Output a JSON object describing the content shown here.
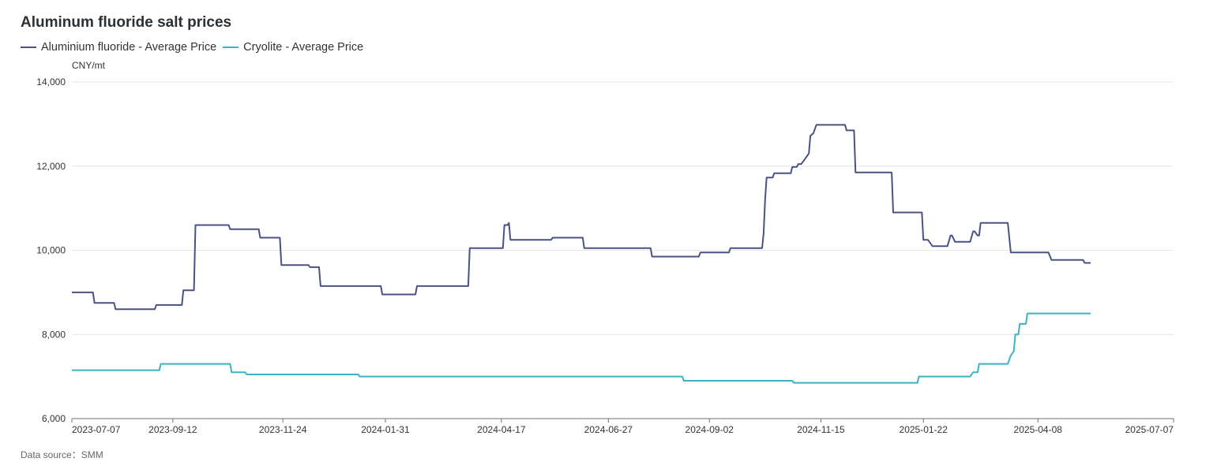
{
  "chart_data": {
    "type": "line",
    "title": "Aluminum fluoride salt prices",
    "ylabel": "CNY/mt",
    "ylim": [
      6000,
      14000
    ],
    "yticks": [
      "6,000",
      "8,000",
      "10,000",
      "12,000",
      "14,000"
    ],
    "xticks": [
      "2023-07-07",
      "2023-09-12",
      "2023-11-24",
      "2024-01-31",
      "2024-04-17",
      "2024-06-27",
      "2024-09-02",
      "2024-11-15",
      "2025-01-22",
      "2025-04-08",
      "2025-07-07"
    ],
    "grid": true,
    "legend_position": "top-left",
    "series": [
      {
        "name": "Aluminium fluoride - Average Price",
        "color": "#4a5185",
        "points": [
          [
            "2023-07-07",
            9000
          ],
          [
            "2023-07-21",
            9000
          ],
          [
            "2023-07-22",
            8750
          ],
          [
            "2023-08-04",
            8750
          ],
          [
            "2023-08-05",
            8600
          ],
          [
            "2023-08-31",
            8600
          ],
          [
            "2023-09-01",
            8700
          ],
          [
            "2023-09-18",
            8700
          ],
          [
            "2023-09-19",
            9050
          ],
          [
            "2023-09-26",
            9050
          ],
          [
            "2023-09-27",
            10600
          ],
          [
            "2023-10-19",
            10600
          ],
          [
            "2023-10-20",
            10500
          ],
          [
            "2023-11-08",
            10500
          ],
          [
            "2023-11-09",
            10300
          ],
          [
            "2023-11-22",
            10300
          ],
          [
            "2023-11-23",
            9650
          ],
          [
            "2023-12-11",
            9650
          ],
          [
            "2023-12-12",
            9600
          ],
          [
            "2023-12-18",
            9600
          ],
          [
            "2023-12-19",
            9150
          ],
          [
            "2024-01-28",
            9150
          ],
          [
            "2024-01-29",
            8950
          ],
          [
            "2024-02-20",
            8950
          ],
          [
            "2024-02-21",
            9150
          ],
          [
            "2024-03-26",
            9150
          ],
          [
            "2024-03-27",
            10050
          ],
          [
            "2024-04-18",
            10050
          ],
          [
            "2024-04-19",
            10600
          ],
          [
            "2024-04-21",
            10600
          ],
          [
            "2024-04-22",
            10650
          ],
          [
            "2024-04-23",
            10250
          ],
          [
            "2024-05-20",
            10250
          ],
          [
            "2024-05-21",
            10300
          ],
          [
            "2024-06-10",
            10300
          ],
          [
            "2024-06-11",
            10050
          ],
          [
            "2024-07-25",
            10050
          ],
          [
            "2024-07-26",
            9850
          ],
          [
            "2024-08-26",
            9850
          ],
          [
            "2024-08-27",
            9950
          ],
          [
            "2024-09-15",
            9950
          ],
          [
            "2024-09-16",
            10050
          ],
          [
            "2024-10-07",
            10050
          ],
          [
            "2024-10-08",
            10400
          ],
          [
            "2024-10-09",
            11200
          ],
          [
            "2024-10-10",
            11730
          ],
          [
            "2024-10-14",
            11730
          ],
          [
            "2024-10-15",
            11830
          ],
          [
            "2024-10-26",
            11830
          ],
          [
            "2024-10-27",
            11980
          ],
          [
            "2024-10-30",
            11980
          ],
          [
            "2024-10-31",
            12050
          ],
          [
            "2024-11-02",
            12050
          ],
          [
            "2024-11-05",
            12200
          ],
          [
            "2024-11-07",
            12300
          ],
          [
            "2024-11-08",
            12720
          ],
          [
            "2024-11-09",
            12750
          ],
          [
            "2024-11-10",
            12780
          ],
          [
            "2024-11-12",
            12980
          ],
          [
            "2024-12-01",
            12980
          ],
          [
            "2024-12-02",
            12850
          ],
          [
            "2024-12-07",
            12850
          ],
          [
            "2024-12-08",
            11850
          ],
          [
            "2025-01-01",
            11850
          ],
          [
            "2025-01-02",
            10900
          ],
          [
            "2025-01-21",
            10900
          ],
          [
            "2025-01-22",
            10250
          ],
          [
            "2025-01-25",
            10250
          ],
          [
            "2025-01-28",
            10100
          ],
          [
            "2025-02-07",
            10100
          ],
          [
            "2025-02-09",
            10350
          ],
          [
            "2025-02-10",
            10350
          ],
          [
            "2025-02-12",
            10200
          ],
          [
            "2025-02-22",
            10200
          ],
          [
            "2025-02-24",
            10450
          ],
          [
            "2025-02-25",
            10450
          ],
          [
            "2025-02-27",
            10350
          ],
          [
            "2025-02-28",
            10350
          ],
          [
            "2025-03-01",
            10650
          ],
          [
            "2025-03-19",
            10650
          ],
          [
            "2025-03-21",
            9950
          ],
          [
            "2025-04-15",
            9950
          ],
          [
            "2025-04-17",
            9770
          ],
          [
            "2025-05-08",
            9770
          ],
          [
            "2025-05-09",
            9700
          ],
          [
            "2025-05-13",
            9700
          ]
        ]
      },
      {
        "name": "Cryolite - Average Price",
        "color": "#3ab3c4",
        "points": [
          [
            "2023-07-07",
            7150
          ],
          [
            "2023-09-03",
            7150
          ],
          [
            "2023-09-04",
            7300
          ],
          [
            "2023-10-20",
            7300
          ],
          [
            "2023-10-21",
            7100
          ],
          [
            "2023-10-30",
            7100
          ],
          [
            "2023-10-31",
            7050
          ],
          [
            "2024-01-13",
            7050
          ],
          [
            "2024-01-14",
            7000
          ],
          [
            "2024-08-15",
            7000
          ],
          [
            "2024-08-16",
            6900
          ],
          [
            "2024-10-27",
            6900
          ],
          [
            "2024-10-28",
            6850
          ],
          [
            "2025-01-18",
            6850
          ],
          [
            "2025-01-19",
            7000
          ],
          [
            "2025-02-22",
            7000
          ],
          [
            "2025-02-24",
            7100
          ],
          [
            "2025-02-27",
            7100
          ],
          [
            "2025-02-28",
            7300
          ],
          [
            "2025-03-19",
            7300
          ],
          [
            "2025-03-21",
            7500
          ],
          [
            "2025-03-23",
            7600
          ],
          [
            "2025-03-24",
            8000
          ],
          [
            "2025-03-26",
            8000
          ],
          [
            "2025-03-27",
            8250
          ],
          [
            "2025-03-31",
            8250
          ],
          [
            "2025-04-01",
            8500
          ],
          [
            "2025-05-13",
            8500
          ]
        ]
      }
    ],
    "source_note": "Data source：SMM"
  }
}
